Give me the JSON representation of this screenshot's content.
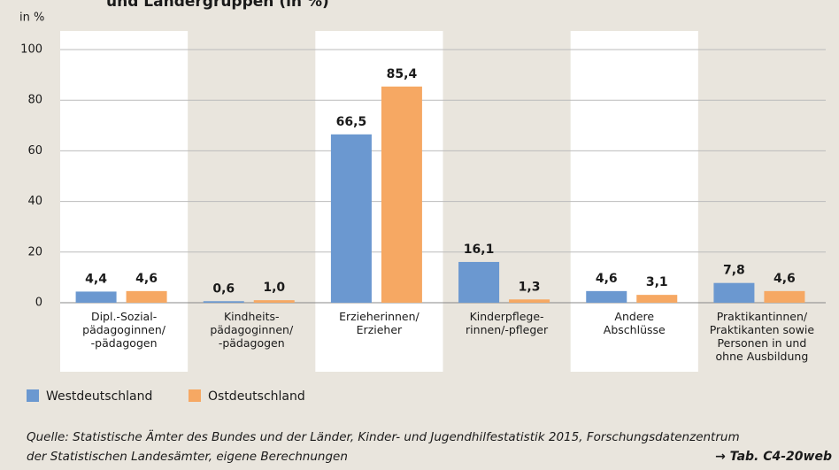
{
  "chart_data": {
    "type": "bar",
    "title": "und Ländergruppen (in %)",
    "y_label": "in %",
    "categories": [
      [
        "Dipl.-Sozial-",
        "pädagoginnen/",
        "-pädagogen"
      ],
      [
        "Kindheits-",
        "pädagoginnen/",
        "-pädagogen"
      ],
      [
        "Erzieherinnen/",
        "Erzieher"
      ],
      [
        "Kinderpflege-",
        "rinnen/-pfleger"
      ],
      [
        "Andere",
        "Abschlüsse"
      ],
      [
        "Praktikantinnen/",
        "Praktikanten sowie",
        "Personen in und",
        "ohne Ausbildung"
      ]
    ],
    "series": [
      {
        "name": "Westdeutschland",
        "color": "#6b98d0",
        "values": [
          4.4,
          0.6,
          66.5,
          16.1,
          4.6,
          7.8
        ],
        "value_labels": [
          "4,4",
          "0,6",
          "66,5",
          "16,1",
          "4,6",
          "7,8"
        ]
      },
      {
        "name": "Ostdeutschland",
        "color": "#f6a863",
        "values": [
          4.6,
          1.0,
          85.4,
          1.3,
          3.1,
          4.6
        ],
        "value_labels": [
          "4,6",
          "1,0",
          "85,4",
          "1,3",
          "3,1",
          "4,6"
        ]
      }
    ],
    "ylim": [
      0,
      100
    ],
    "yticks": [
      0,
      20,
      40,
      60,
      80,
      100
    ],
    "grid": true,
    "legend": "bottom",
    "source": [
      "Quelle: Statistische Ämter des Bundes und der Länder, Kinder- und Jugendhilfestatistik 2015, Forschungsdatenzentrum",
      "der Statistischen Landesämter, eigene Berechnungen"
    ],
    "reference": "→ Tab. C4-20web"
  }
}
